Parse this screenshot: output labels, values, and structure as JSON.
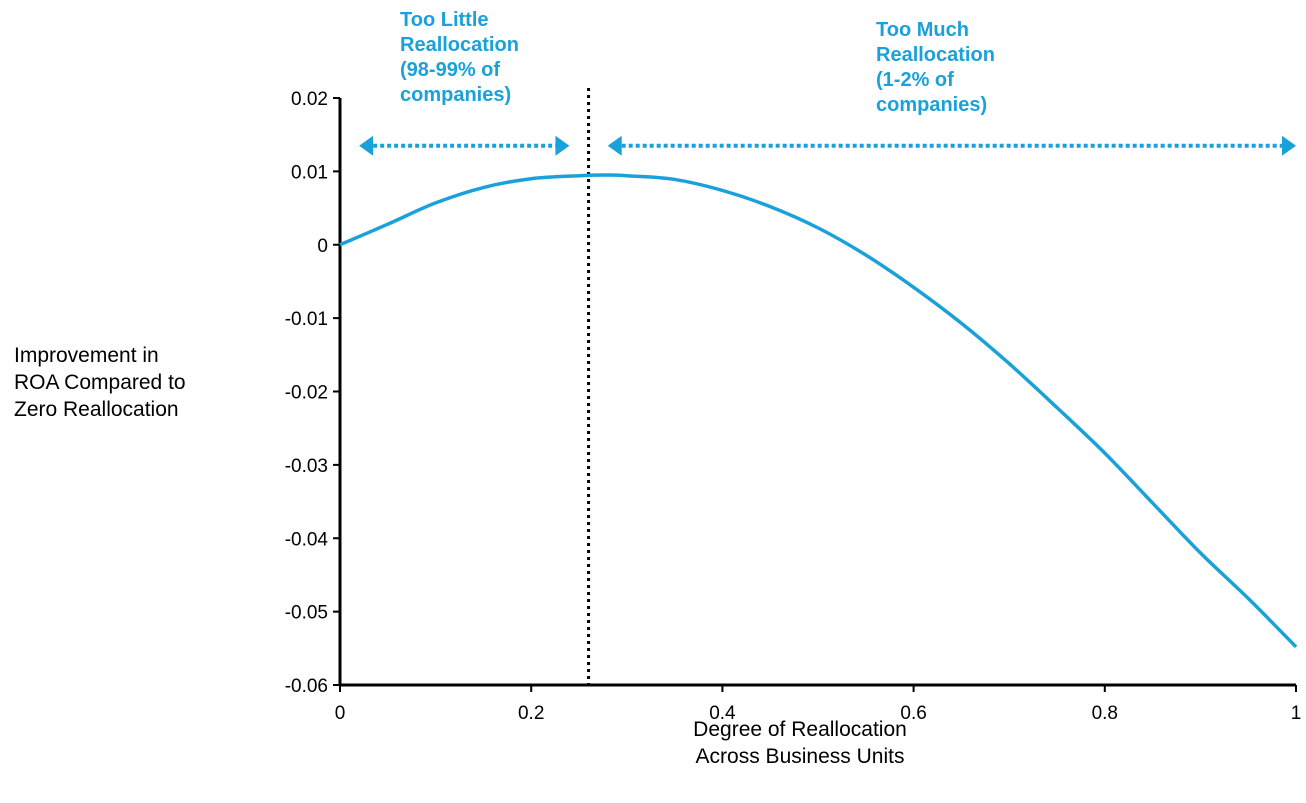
{
  "chart_data": {
    "type": "line",
    "title": "",
    "xlabel_lines": [
      "Degree of Reallocation",
      "Across Business Units"
    ],
    "ylabel_lines": [
      "Improvement in",
      "ROA Compared to",
      "Zero Reallocation"
    ],
    "xlim": [
      0,
      1
    ],
    "ylim": [
      -0.06,
      0.02
    ],
    "x_ticks": [
      0,
      0.2,
      0.4,
      0.6,
      0.8,
      1
    ],
    "x_tick_labels": [
      "0",
      "0.2",
      "0.4",
      "0.6",
      "0.8",
      "1"
    ],
    "y_ticks": [
      0.02,
      0.01,
      0,
      -0.01,
      -0.02,
      -0.03,
      -0.04,
      -0.05,
      -0.06
    ],
    "y_tick_labels": [
      "0.02",
      "0.01",
      "0",
      "-0.01",
      "-0.02",
      "-0.03",
      "-0.04",
      "-0.05",
      "-0.06"
    ],
    "grid": false,
    "legend": "none",
    "series": [
      {
        "x": [
          0,
          0.05,
          0.1,
          0.15,
          0.2,
          0.25,
          0.28,
          0.3,
          0.35,
          0.4,
          0.45,
          0.5,
          0.55,
          0.6,
          0.65,
          0.7,
          0.75,
          0.8,
          0.85,
          0.9,
          0.95,
          1
        ],
        "y": [
          0,
          0.0028,
          0.0057,
          0.0078,
          0.009,
          0.0094,
          0.0095,
          0.0094,
          0.0089,
          0.0074,
          0.0052,
          0.0023,
          -0.0014,
          -0.0058,
          -0.0107,
          -0.0162,
          -0.0222,
          -0.0284,
          -0.0352,
          -0.042,
          -0.0482,
          -0.0548
        ]
      }
    ],
    "vline_x": 0.26,
    "annotations": [
      {
        "lines": [
          "Too Little",
          "Reallocation",
          "(98-99% of",
          "companies)"
        ],
        "range": [
          0.02,
          0.24
        ],
        "y": 0.0135
      },
      {
        "lines": [
          "Too Much",
          "Reallocation",
          "(1-2% of",
          "companies)"
        ],
        "range": [
          0.28,
          1.0
        ],
        "y": 0.0135
      }
    ],
    "colors": {
      "line": "#1aa1dc",
      "axis": "#000000",
      "vline": "#000000"
    }
  }
}
